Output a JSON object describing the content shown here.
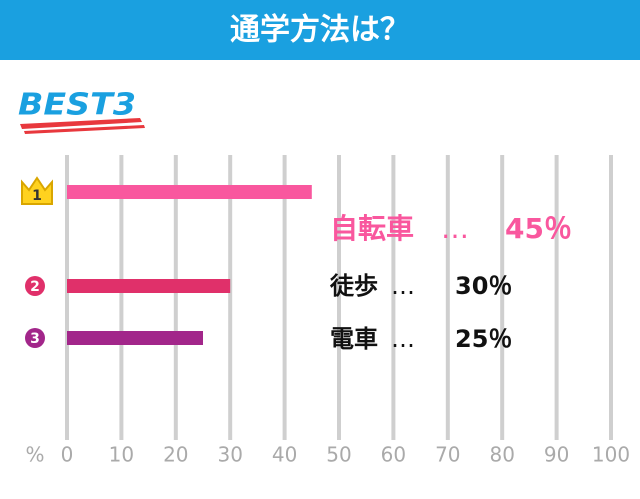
{
  "chart_data": {
    "type": "bar",
    "orientation": "horizontal",
    "title": "通学方法は？",
    "badge": "BEST3",
    "categories": [
      "自転車",
      "徒歩",
      "電車"
    ],
    "ranks": [
      1,
      2,
      3
    ],
    "separator": "…",
    "values": [
      45,
      30,
      25
    ],
    "value_labels": [
      "45％",
      "30％",
      "25％"
    ],
    "colors": [
      "#f9579e",
      "#e0306a",
      "#a2268a"
    ],
    "label_colors": [
      "#f9579e",
      "#111111",
      "#111111"
    ],
    "x_unit": "%",
    "xlim": [
      0,
      100
    ],
    "xticks": [
      0,
      10,
      20,
      30,
      40,
      50,
      60,
      70,
      80,
      90,
      100
    ],
    "grid": true
  }
}
